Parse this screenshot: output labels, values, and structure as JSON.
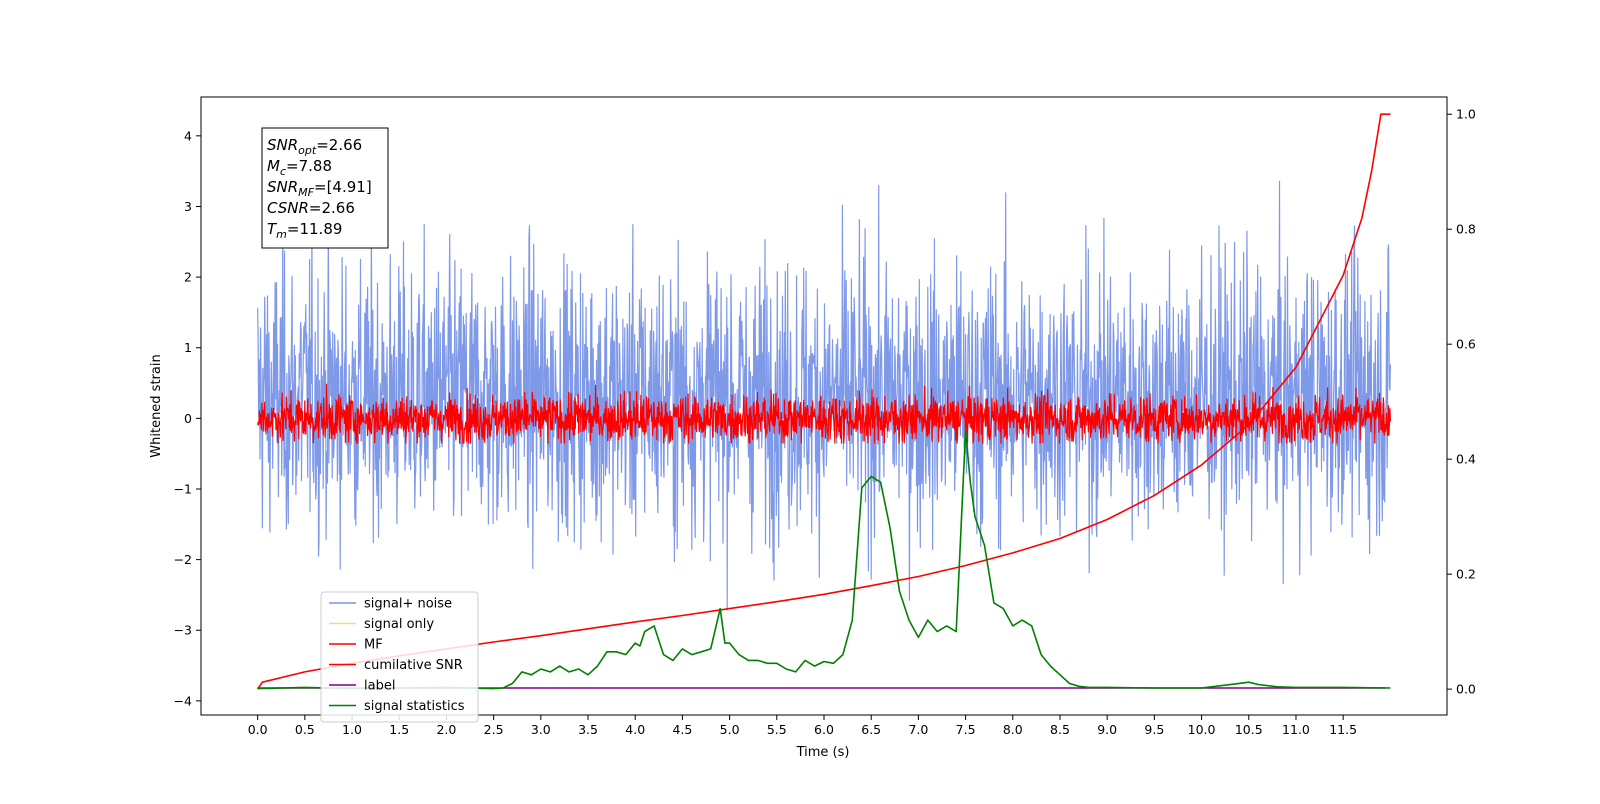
{
  "chart_data": {
    "type": "line",
    "xlabel": "Time (s)",
    "ylabel": "Whitened strain",
    "xlim": [
      -0.6,
      12.6
    ],
    "ylim_left": [
      -4.2,
      4.55
    ],
    "ylim_right": [
      -0.045,
      1.03
    ],
    "x_ticks": [
      "0.0",
      "0.5",
      "1.0",
      "1.5",
      "2.0",
      "2.5",
      "3.0",
      "3.5",
      "4.0",
      "4.5",
      "5.0",
      "5.5",
      "6.0",
      "6.5",
      "7.0",
      "7.5",
      "8.0",
      "8.5",
      "9.0",
      "9.5",
      "10.0",
      "10.5",
      "11.0",
      "11.5"
    ],
    "y_ticks_left": [
      "−4",
      "−3",
      "−2",
      "−1",
      "0",
      "1",
      "2",
      "3",
      "4"
    ],
    "y_ticks_right": [
      "0.0",
      "0.2",
      "0.4",
      "0.6",
      "0.8",
      "1.0"
    ],
    "annotation": {
      "lines": [
        {
          "sym": "SNR",
          "sub": "opt",
          "value": "=2.66"
        },
        {
          "sym": "M",
          "sub": "c",
          "value": "=7.88"
        },
        {
          "sym": "SNR",
          "sub": "MF",
          "value": "=[4.91]"
        },
        {
          "sym": "CSNR",
          "sub": "",
          "value": "=2.66"
        },
        {
          "sym": "T",
          "sub": "m",
          "value": "=11.89"
        }
      ]
    },
    "legend": {
      "position": "lower-left",
      "entries": [
        {
          "label": "signal+ noise",
          "color": "#7893e8"
        },
        {
          "label": "signal only",
          "color": "#ffd580"
        },
        {
          "label": "MF",
          "color": "#ff0000"
        },
        {
          "label": "cumilative SNR",
          "color": "#ff0000"
        },
        {
          "label": "label",
          "color": "#800080"
        },
        {
          "label": "signal statistics",
          "color": "#008000"
        }
      ]
    },
    "series": [
      {
        "name": "signal+ noise",
        "axis": "left",
        "color": "#7893e8",
        "kind": "noise",
        "t_range": [
          0,
          12
        ],
        "mean": 0.3,
        "std": 0.95,
        "peak_max": 4.17,
        "trough_min": -3.75
      },
      {
        "name": "MF",
        "axis": "left",
        "color": "#ff0000",
        "kind": "noise",
        "t_range": [
          0,
          12
        ],
        "mean": 0.0,
        "std": 0.17,
        "peak_max": 1.0,
        "trough_min": -0.35
      },
      {
        "name": "cumilative SNR",
        "axis": "right",
        "color": "#ff0000",
        "x": [
          0.0,
          0.05,
          0.5,
          1.0,
          1.5,
          2.0,
          2.5,
          3.0,
          3.5,
          4.0,
          4.5,
          5.0,
          5.5,
          6.0,
          6.5,
          7.0,
          7.5,
          8.0,
          8.5,
          9.0,
          9.5,
          10.0,
          10.5,
          11.0,
          11.5,
          11.7,
          11.8,
          11.9,
          12.0
        ],
        "y": [
          0.0,
          0.012,
          0.03,
          0.045,
          0.058,
          0.07,
          0.082,
          0.093,
          0.105,
          0.117,
          0.128,
          0.14,
          0.152,
          0.165,
          0.18,
          0.196,
          0.215,
          0.237,
          0.262,
          0.295,
          0.337,
          0.39,
          0.46,
          0.56,
          0.72,
          0.82,
          0.9,
          1.0,
          1.0
        ]
      },
      {
        "name": "label",
        "axis": "right",
        "color": "#800080",
        "x": [
          0.0,
          11.95
        ],
        "y": [
          0.002,
          0.002
        ]
      },
      {
        "name": "signal statistics",
        "axis": "right",
        "color": "#008000",
        "x": [
          0.0,
          0.5,
          1.0,
          1.5,
          2.0,
          2.5,
          2.6,
          2.7,
          2.8,
          2.9,
          3.0,
          3.1,
          3.2,
          3.3,
          3.4,
          3.5,
          3.6,
          3.7,
          3.8,
          3.9,
          4.0,
          4.05,
          4.1,
          4.2,
          4.3,
          4.4,
          4.5,
          4.6,
          4.7,
          4.8,
          4.9,
          4.95,
          5.0,
          5.1,
          5.2,
          5.3,
          5.4,
          5.5,
          5.6,
          5.7,
          5.8,
          5.9,
          6.0,
          6.1,
          6.2,
          6.3,
          6.4,
          6.5,
          6.6,
          6.7,
          6.8,
          6.9,
          7.0,
          7.1,
          7.2,
          7.3,
          7.4,
          7.5,
          7.55,
          7.6,
          7.7,
          7.8,
          7.9,
          8.0,
          8.1,
          8.2,
          8.3,
          8.4,
          8.5,
          8.6,
          8.7,
          8.8,
          9.0,
          9.5,
          10.0,
          10.4,
          10.5,
          10.6,
          10.8,
          11.0,
          11.5,
          12.0
        ],
        "y": [
          0.001,
          0.003,
          0.001,
          0.002,
          0.003,
          0.001,
          0.002,
          0.01,
          0.03,
          0.025,
          0.035,
          0.03,
          0.04,
          0.03,
          0.035,
          0.025,
          0.04,
          0.065,
          0.065,
          0.06,
          0.08,
          0.075,
          0.1,
          0.11,
          0.06,
          0.05,
          0.07,
          0.06,
          0.065,
          0.07,
          0.14,
          0.08,
          0.08,
          0.06,
          0.05,
          0.05,
          0.045,
          0.045,
          0.035,
          0.03,
          0.05,
          0.04,
          0.048,
          0.045,
          0.06,
          0.12,
          0.35,
          0.37,
          0.36,
          0.28,
          0.17,
          0.12,
          0.09,
          0.12,
          0.1,
          0.11,
          0.1,
          0.45,
          0.36,
          0.3,
          0.25,
          0.15,
          0.14,
          0.11,
          0.12,
          0.11,
          0.06,
          0.04,
          0.025,
          0.01,
          0.005,
          0.003,
          0.003,
          0.002,
          0.002,
          0.01,
          0.012,
          0.008,
          0.004,
          0.003,
          0.003,
          0.002
        ]
      }
    ]
  }
}
